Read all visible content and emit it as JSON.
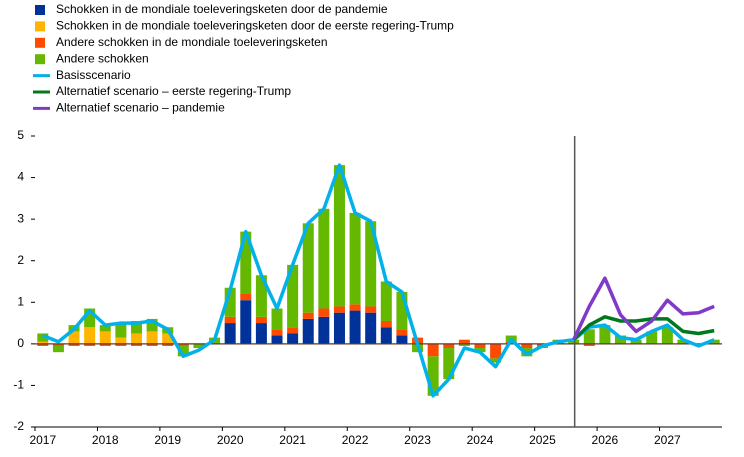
{
  "chart_data": {
    "type": "bar",
    "categories": [
      "2017",
      null,
      null,
      null,
      "2018",
      null,
      null,
      null,
      "2019",
      null,
      null,
      null,
      "2020",
      null,
      null,
      null,
      "2021",
      null,
      null,
      null,
      "2022",
      null,
      null,
      null,
      "2023",
      null,
      null,
      null,
      "2024",
      null,
      null,
      null,
      "2025",
      null,
      null,
      null,
      "2026",
      null,
      null,
      null,
      "2027",
      null,
      null,
      null
    ],
    "ylim": [
      -2,
      5
    ],
    "yticks": [
      -2,
      -1,
      0,
      1,
      2,
      3,
      4,
      5
    ],
    "grid": false,
    "series": [
      {
        "name": "Schokken in de mondiale toeleveringsketen door de pandemie",
        "type": "bar",
        "color": "#003299",
        "values": [
          0,
          0,
          0,
          0,
          0,
          0,
          0,
          0,
          0,
          0,
          0,
          0,
          0.5,
          1.05,
          0.5,
          0.2,
          0.25,
          0.6,
          0.65,
          0.75,
          0.8,
          0.75,
          0.4,
          0.2,
          0,
          0,
          0,
          0,
          0,
          0,
          0,
          0,
          0,
          0,
          0,
          0,
          0,
          0,
          0,
          0,
          0,
          0,
          0,
          0
        ]
      },
      {
        "name": "Schokken in de mondiale toeleveringsketen door de eerste regering-Trump",
        "type": "bar",
        "color": "#ffb400",
        "values": [
          0.05,
          0,
          0.3,
          0.4,
          0.3,
          0.15,
          0.25,
          0.3,
          0.25,
          0,
          0,
          0,
          0,
          0,
          0,
          0,
          0,
          0,
          0,
          0,
          0,
          0,
          0,
          0,
          0,
          0,
          0,
          0,
          0,
          0,
          0,
          0,
          0,
          0,
          0,
          0,
          0,
          0,
          0,
          0,
          0,
          0,
          0,
          0
        ]
      },
      {
        "name": "Andere schokken in de mondiale toeleveringsketen",
        "type": "bar",
        "color": "#ff4b00",
        "values": [
          -0.05,
          -0.05,
          -0.05,
          -0.05,
          -0.05,
          -0.05,
          -0.05,
          -0.05,
          -0.05,
          -0.05,
          0,
          0,
          0.15,
          0.15,
          0.15,
          0.15,
          0.15,
          0.15,
          0.2,
          0.15,
          0.15,
          0.15,
          0.15,
          0.15,
          0.15,
          -0.3,
          -0.1,
          0.1,
          -0.1,
          -0.35,
          0.05,
          -0.1,
          -0.05,
          0,
          0,
          -0.05,
          0,
          0,
          0,
          0,
          0,
          0,
          0,
          0
        ]
      },
      {
        "name": "Andere schokken",
        "type": "bar",
        "color": "#65b800",
        "values": [
          0.2,
          -0.15,
          0.15,
          0.45,
          0.15,
          0.35,
          0.3,
          0.3,
          0.15,
          -0.25,
          -0.1,
          0.15,
          0.7,
          1.5,
          1.0,
          0.5,
          1.5,
          2.15,
          2.4,
          3.4,
          2.2,
          2.05,
          0.95,
          0.9,
          -0.2,
          -0.95,
          -0.75,
          -0.05,
          -0.1,
          -0.1,
          0.15,
          -0.2,
          -0.05,
          0.1,
          0.1,
          0.35,
          0.45,
          0.2,
          0.1,
          0.3,
          0.4,
          0.1,
          0,
          0.1
        ]
      },
      {
        "name": "Basisscenario",
        "type": "line",
        "color": "#00b1ea",
        "values": [
          0.2,
          0.05,
          0.35,
          0.8,
          0.45,
          0.5,
          0.5,
          0.55,
          0.35,
          -0.3,
          -0.15,
          0.1,
          1.3,
          2.7,
          1.65,
          0.85,
          1.9,
          2.9,
          3.25,
          4.3,
          3.15,
          2.95,
          1.5,
          1.25,
          0,
          -1.25,
          -0.85,
          -0.1,
          -0.2,
          -0.55,
          0.1,
          -0.25,
          -0.05,
          0.05,
          0.1,
          0.4,
          0.45,
          0.15,
          0.1,
          0.3,
          0.45,
          0.1,
          -0.05,
          0.1
        ]
      },
      {
        "name": "Alternatief scenario – eerste regering-Trump",
        "type": "line",
        "color": "#00781e",
        "values": [
          null,
          null,
          null,
          null,
          null,
          null,
          null,
          null,
          null,
          null,
          null,
          null,
          null,
          null,
          null,
          null,
          null,
          null,
          null,
          null,
          null,
          null,
          null,
          null,
          null,
          null,
          null,
          null,
          null,
          null,
          null,
          null,
          null,
          null,
          0.1,
          0.45,
          0.65,
          0.55,
          0.55,
          0.6,
          0.6,
          0.3,
          0.25,
          0.32
        ]
      },
      {
        "name": "Alternatief scenario – pandemie",
        "type": "line",
        "color": "#8139c7",
        "values": [
          null,
          null,
          null,
          null,
          null,
          null,
          null,
          null,
          null,
          null,
          null,
          null,
          null,
          null,
          null,
          null,
          null,
          null,
          null,
          null,
          null,
          null,
          null,
          null,
          null,
          null,
          null,
          null,
          null,
          null,
          null,
          null,
          null,
          null,
          0.1,
          0.9,
          1.58,
          0.7,
          0.3,
          0.55,
          1.05,
          0.72,
          0.75,
          0.9
        ]
      }
    ]
  }
}
